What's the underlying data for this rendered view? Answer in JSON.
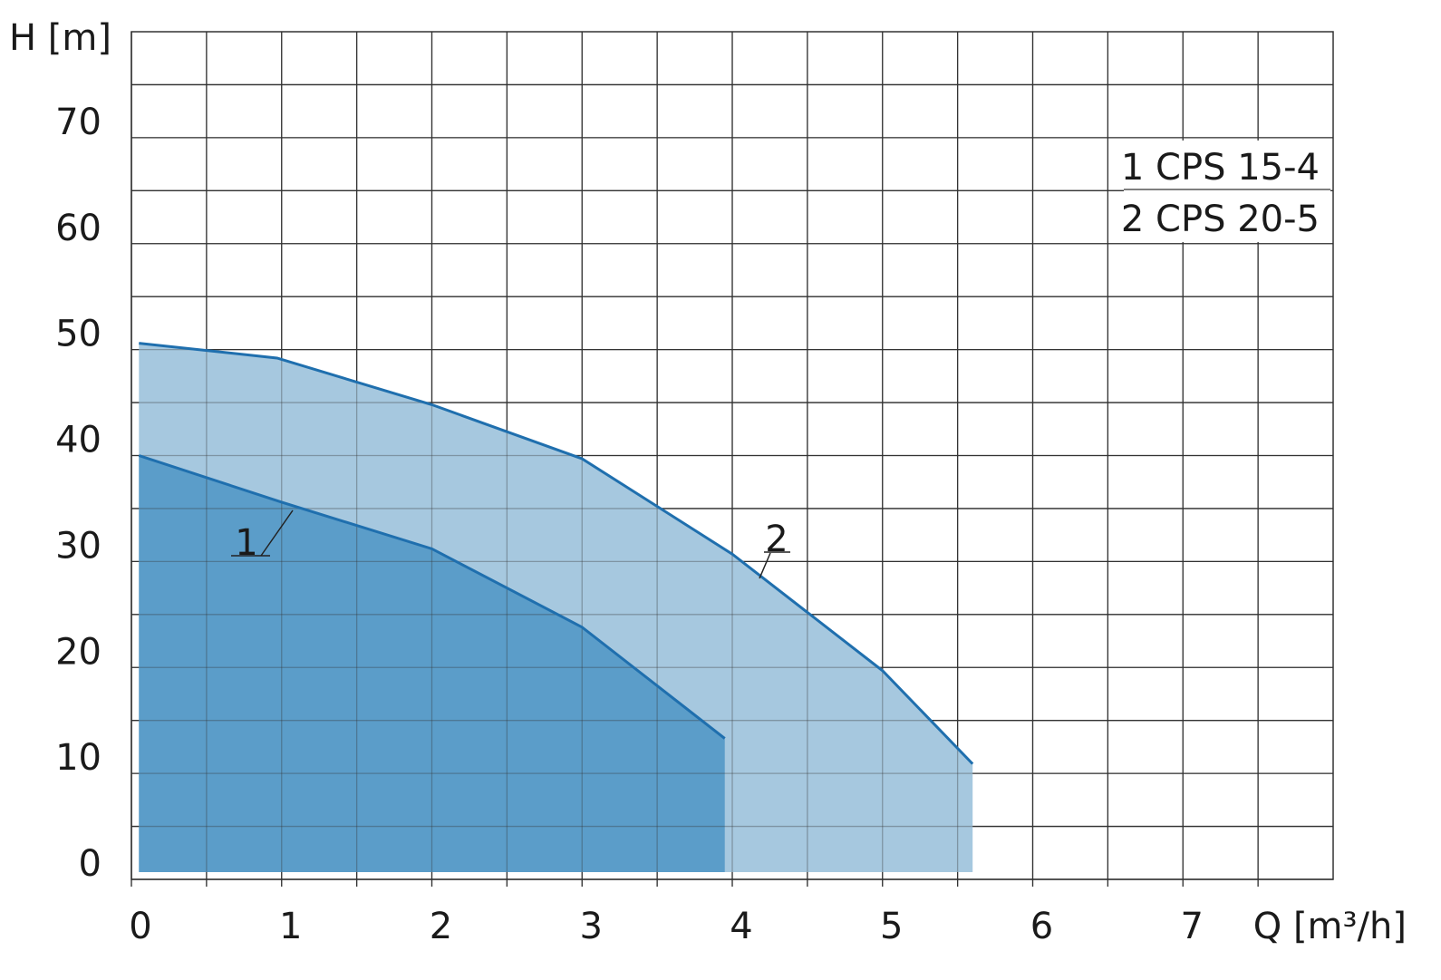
{
  "chart_data": {
    "type": "area",
    "ylabel": "H [m]",
    "xlabel": "Q [m³/h]",
    "xlim": [
      0,
      8
    ],
    "xticks": [
      0,
      1,
      2,
      3,
      4,
      5,
      6,
      7
    ],
    "ylim": [
      0,
      80
    ],
    "yticks": [
      0,
      10,
      20,
      30,
      40,
      50,
      60,
      70
    ],
    "grid": true,
    "legend": "upper right",
    "series": [
      {
        "name": "1 CPS 15-4",
        "label": "1",
        "color": "#5b9dc9",
        "line_color": "#1f6fae",
        "x": [
          0.05,
          1,
          2,
          3,
          3.95
        ],
        "values": [
          40,
          35.6,
          31.2,
          23.8,
          13.3
        ]
      },
      {
        "name": "2 CPS 20-5",
        "label": "2",
        "color": "#a6c8df",
        "line_color": "#1f6fae",
        "x": [
          0.05,
          0.97,
          2,
          3,
          4,
          5,
          5.6
        ],
        "values": [
          50.6,
          49.2,
          44.8,
          39.7,
          30.7,
          19.7,
          10.9
        ]
      }
    ]
  }
}
